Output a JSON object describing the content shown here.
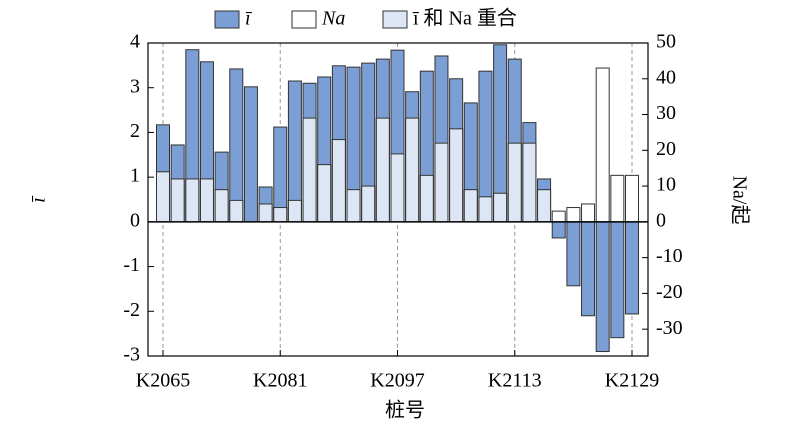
{
  "chart_data": {
    "type": "bar",
    "categories": [
      "K2065",
      null,
      null,
      null,
      null,
      null,
      null,
      null,
      "K2081",
      null,
      null,
      null,
      null,
      null,
      null,
      null,
      "K2097",
      null,
      null,
      null,
      null,
      null,
      null,
      null,
      "K2113",
      null,
      null,
      null,
      null,
      null,
      null,
      null,
      "K2129"
    ],
    "series": [
      {
        "name": "ī",
        "color": "#7b9fd4",
        "values": [
          2.17,
          1.72,
          3.85,
          3.58,
          1.56,
          3.42,
          3.02,
          0.78,
          2.12,
          3.15,
          3.1,
          3.24,
          3.49,
          3.46,
          3.55,
          3.64,
          3.84,
          2.91,
          3.37,
          3.71,
          3.2,
          2.66,
          3.37,
          3.96,
          3.64,
          2.22,
          0.96,
          -0.36,
          -1.43,
          -2.1,
          -2.9,
          -2.59,
          -2.06
        ]
      },
      {
        "name": "Na",
        "color": "#ffffff",
        "axis": "y2",
        "values": [
          14,
          12,
          12,
          12,
          9,
          6,
          0,
          5,
          4,
          6,
          29,
          16,
          23,
          9,
          10,
          29,
          19,
          29,
          13,
          22,
          26,
          9,
          7,
          8,
          22,
          22,
          9,
          3,
          4,
          5,
          43,
          13,
          13
        ]
      }
    ],
    "overlap_label": "ī 和 Na 重合",
    "overlap_color": "#dde6f4",
    "x_label": "桩号",
    "y_label": "ī",
    "y2_label": "Na/起",
    "ylim": [
      -3,
      4
    ],
    "yticks": [
      -3,
      -2,
      -1,
      0,
      1,
      2,
      3,
      4
    ],
    "y2lim": [
      -37.5,
      50
    ],
    "y2ticks": [
      -30,
      -20,
      -10,
      0,
      10,
      20,
      30,
      40,
      50
    ],
    "grid_x": true
  }
}
